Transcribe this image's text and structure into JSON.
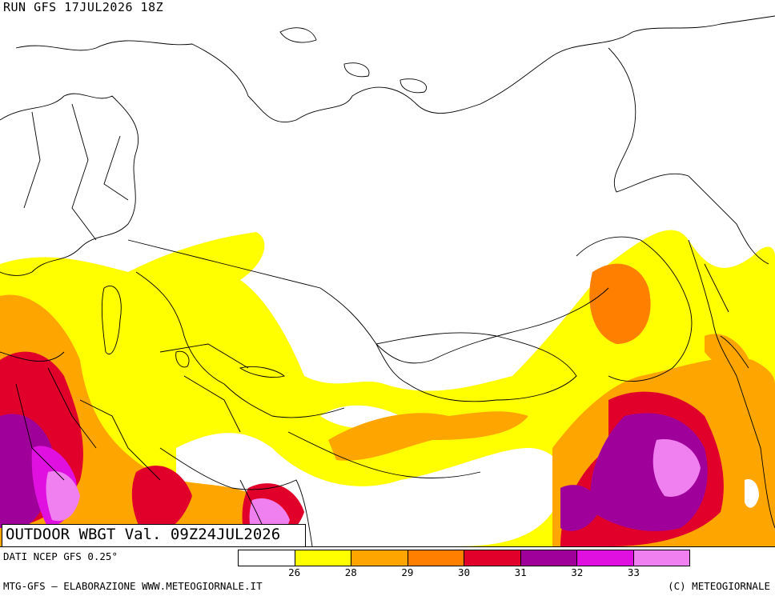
{
  "header": {
    "run_label": "RUN GFS 17JUL2026 18Z"
  },
  "map": {
    "title": "OUTDOOR WBGT Val. 09Z24JUL2026",
    "region": "Eurasia / Asia",
    "background_color": "#ffffff",
    "border_color": "#000000"
  },
  "legend": {
    "colors": [
      "#ffffff",
      "#ffff00",
      "#ffa500",
      "#ff7f00",
      "#e0002a",
      "#a0009a",
      "#e010e0",
      "#f080f0"
    ],
    "ticks": [
      "26",
      "28",
      "29",
      "30",
      "31",
      "32",
      "33"
    ]
  },
  "footer": {
    "source": "DATI NCEP GFS 0.25°",
    "left": "MTG-GFS — ELABORAZIONE WWW.METEOGIORNALE.IT",
    "right": "(C) METEOGIORNALE"
  }
}
